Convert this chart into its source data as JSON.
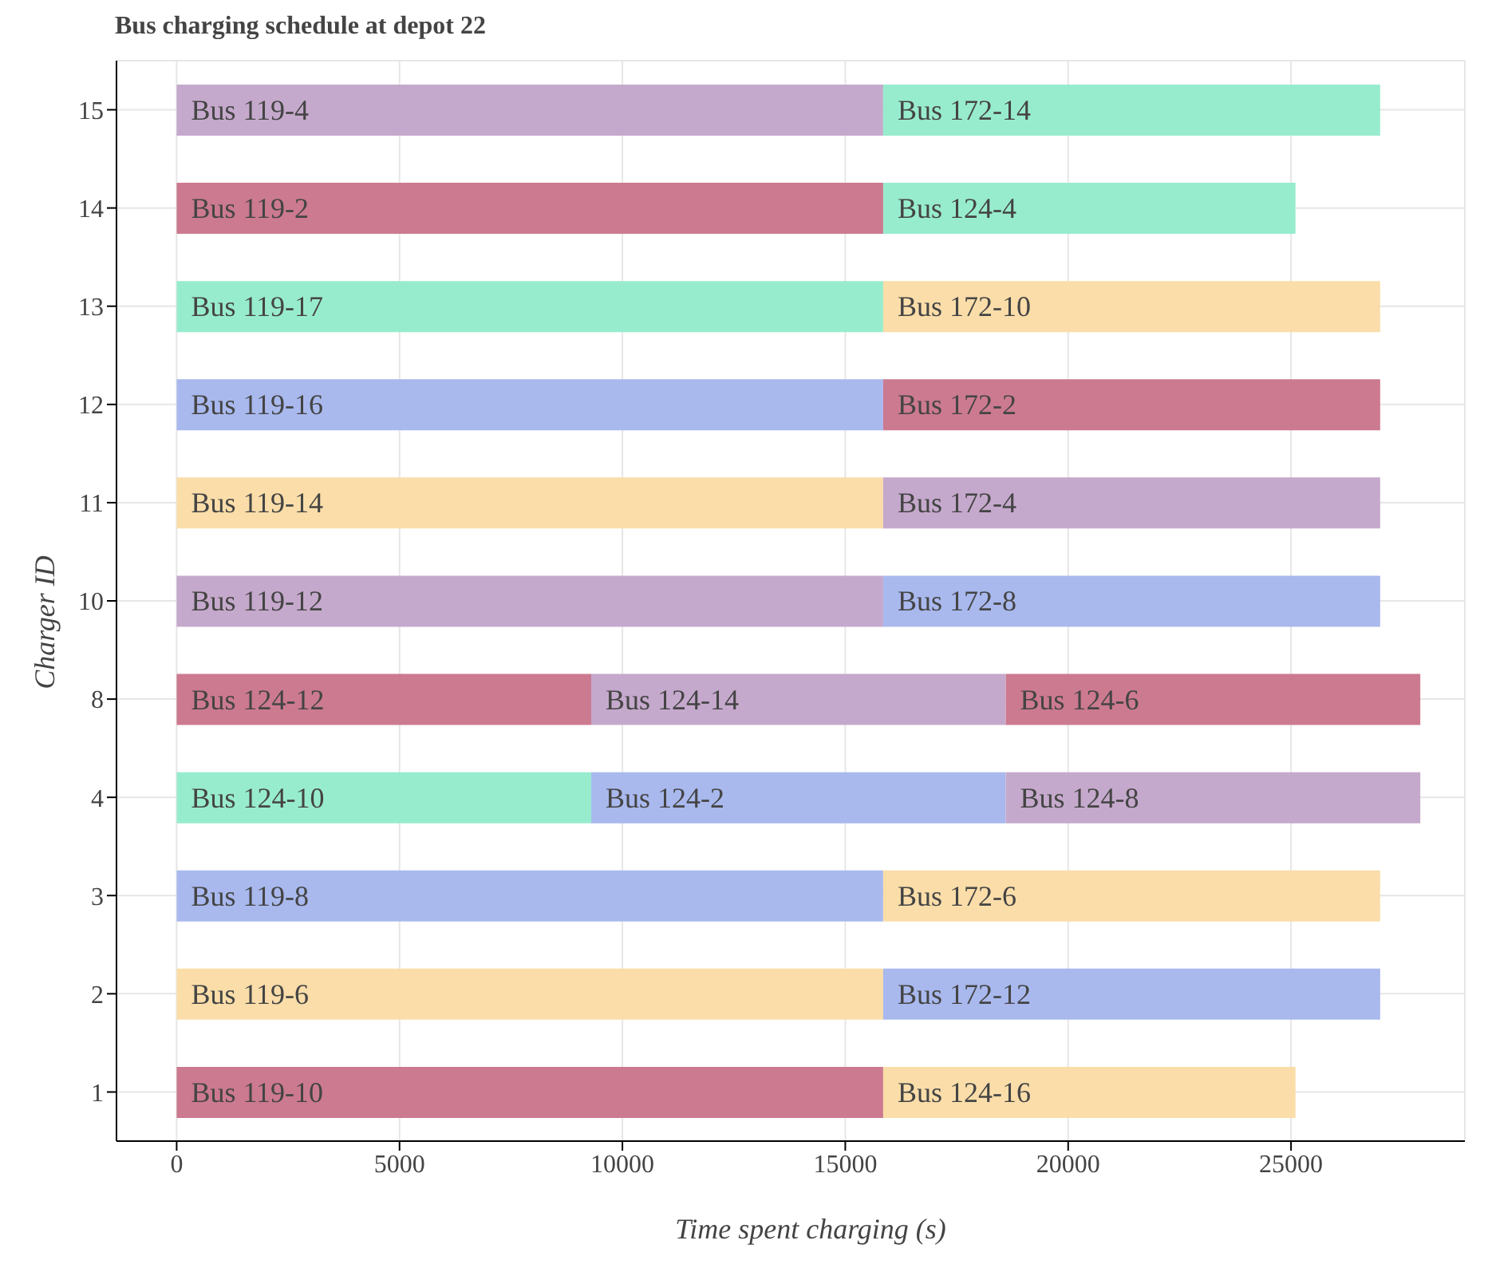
{
  "chart_data": {
    "type": "bar",
    "orientation": "horizontal",
    "stacked": true,
    "title": "Bus charging schedule at depot 22",
    "xlabel": "Time spent charging (s)",
    "ylabel": "Charger ID",
    "categories": [
      "15",
      "14",
      "13",
      "12",
      "11",
      "10",
      "8",
      "4",
      "3",
      "2",
      "1"
    ],
    "series": [
      {
        "values": [
          15850,
          15850,
          15850,
          15850,
          15850,
          15850,
          9300,
          9300,
          15850,
          15850,
          15850
        ],
        "colors": [
          "#c5a9cc",
          "#cc7a90",
          "#98ecce",
          "#a9b9ee",
          "#fadda9",
          "#c5a9cc",
          "#cc7a90",
          "#98ecce",
          "#a9b9ee",
          "#fadda9",
          "#cc7a90"
        ],
        "value_labels": [
          "Bus 119-4",
          "Bus 119-2",
          "Bus 119-17",
          "Bus 119-16",
          "Bus 119-14",
          "Bus 119-12",
          "Bus 124-12",
          "Bus 124-10",
          "Bus 119-8",
          "Bus 119-6",
          "Bus 119-10"
        ]
      },
      {
        "values": [
          11150,
          9250,
          11150,
          11150,
          11150,
          11150,
          9300,
          9300,
          11150,
          11150,
          9250
        ],
        "colors": [
          "#98ecce",
          "#98ecce",
          "#fadda9",
          "#cc7a90",
          "#c5a9cc",
          "#a9b9ee",
          "#c5a9cc",
          "#a9b9ee",
          "#fadda9",
          "#a9b9ee",
          "#fadda9"
        ],
        "value_labels": [
          "Bus 172-14",
          "Bus 124-4",
          "Bus 172-10",
          "Bus 172-2",
          "Bus 172-4",
          "Bus 172-8",
          "Bus 124-14",
          "Bus 124-2",
          "Bus 172-6",
          "Bus 172-12",
          "Bus 124-16"
        ]
      },
      {
        "values": [
          null,
          null,
          null,
          null,
          null,
          null,
          9300,
          9300,
          null,
          null,
          null
        ],
        "colors": [
          "#c5a9cc",
          "#c5a9cc",
          "#c5a9cc",
          "#c5a9cc",
          "#c5a9cc",
          "#c5a9cc",
          "#cc7a90",
          "#c5a9cc",
          "#c5a9cc",
          "#c5a9cc",
          "#c5a9cc"
        ],
        "value_labels": [
          null,
          null,
          null,
          null,
          null,
          null,
          "Bus 124-6",
          "Bus 124-8",
          null,
          null,
          null
        ]
      }
    ],
    "xlim": [
      -1350,
      28900
    ],
    "xticks": [
      0,
      5000,
      10000,
      15000,
      20000,
      25000
    ],
    "grid": true
  }
}
